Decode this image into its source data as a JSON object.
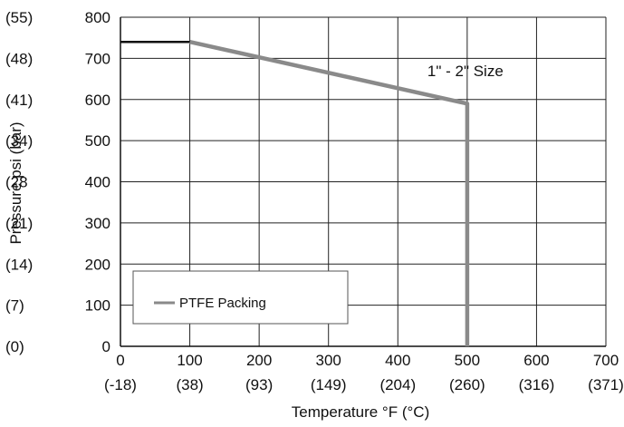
{
  "chart_data": {
    "type": "line",
    "xlabel": "Temperature °F (°C)",
    "ylabel": "Pressure psi (bar)",
    "xlim": [
      0,
      700
    ],
    "ylim": [
      0,
      800
    ],
    "grid": true,
    "x_ticks": [
      {
        "value": 0,
        "label": "0",
        "sublabel": "(-18)"
      },
      {
        "value": 100,
        "label": "100",
        "sublabel": "(38)"
      },
      {
        "value": 200,
        "label": "200",
        "sublabel": "(93)"
      },
      {
        "value": 300,
        "label": "300",
        "sublabel": "(149)"
      },
      {
        "value": 400,
        "label": "400",
        "sublabel": "(204)"
      },
      {
        "value": 500,
        "label": "500",
        "sublabel": "(260)"
      },
      {
        "value": 600,
        "label": "600",
        "sublabel": "(316)"
      },
      {
        "value": 700,
        "label": "700",
        "sublabel": "(371)"
      }
    ],
    "y_ticks": [
      {
        "value": 0,
        "label": "0",
        "bar": "(0)"
      },
      {
        "value": 100,
        "label": "100",
        "bar": "(7)"
      },
      {
        "value": 200,
        "label": "200",
        "bar": "(14)"
      },
      {
        "value": 300,
        "label": "300",
        "bar": "(21)"
      },
      {
        "value": 400,
        "label": "400",
        "bar": "(28"
      },
      {
        "value": 500,
        "label": "500",
        "bar": "(34)"
      },
      {
        "value": 600,
        "label": "600",
        "bar": "(41)"
      },
      {
        "value": 700,
        "label": "700",
        "bar": "(48)"
      },
      {
        "value": 800,
        "label": "800",
        "bar": "(55)"
      }
    ],
    "series": [
      {
        "name": "",
        "color": "#111111",
        "points": [
          [
            0,
            740
          ],
          [
            100,
            740
          ],
          [
            500,
            590
          ]
        ]
      },
      {
        "name": "PTFE Packing",
        "color": "#8a8a8a",
        "points": [
          [
            100,
            740
          ],
          [
            500,
            590
          ],
          [
            500,
            0
          ]
        ]
      }
    ],
    "annotations": [
      {
        "text": "1\" - 2\" Size",
        "x": 500,
        "y": 670
      }
    ],
    "legend": {
      "placement": "bottom-left",
      "entries": [
        "PTFE Packing"
      ]
    }
  }
}
